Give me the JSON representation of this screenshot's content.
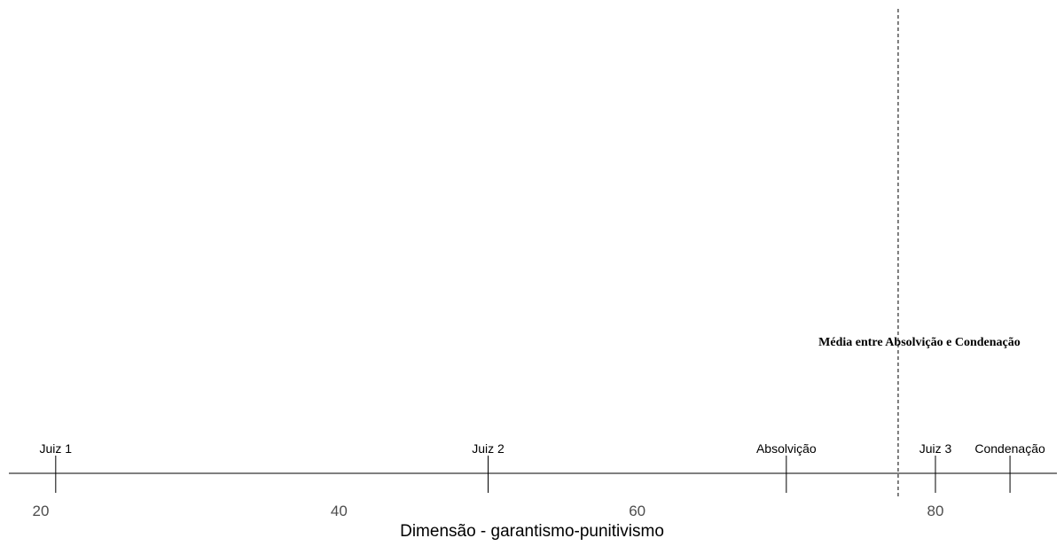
{
  "chart_data": {
    "type": "scatter",
    "title": "",
    "xlabel": "Dimensão - garantismo-punitivismo",
    "ylabel": "",
    "xlim": [
      20,
      88
    ],
    "x_ticks": [
      20,
      40,
      60,
      80
    ],
    "grid": false,
    "legend": "none",
    "points": [
      {
        "label": "Juiz 1",
        "x": 21
      },
      {
        "label": "Juiz 2",
        "x": 50
      },
      {
        "label": "Absolvição",
        "x": 70
      },
      {
        "label": "Juiz 3",
        "x": 80
      },
      {
        "label": "Condenação",
        "x": 85
      }
    ],
    "reference_line": {
      "x": 77.5,
      "style": "dashed",
      "label": "Média entre Absolvição e Condenação"
    },
    "colors": {
      "line": "#000000",
      "tick_text": "#4d4d4d",
      "background": "#ffffff"
    }
  }
}
